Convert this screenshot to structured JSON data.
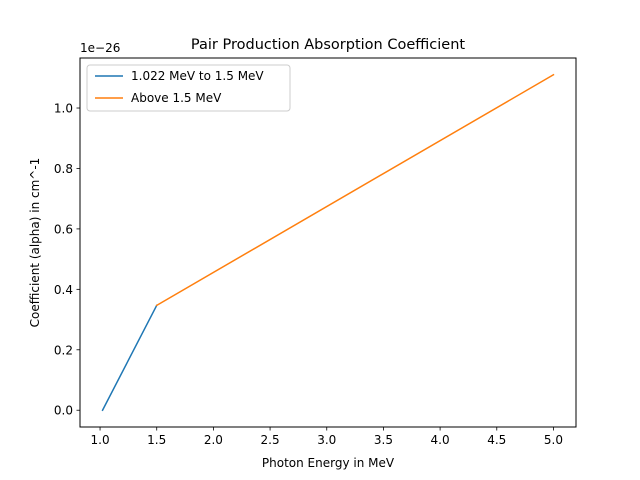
{
  "chart_data": {
    "type": "line",
    "title": "Pair Production Absorption Coefficient",
    "xlabel": "Photon Energy in MeV",
    "ylabel": "Coefficient (alpha) in cm^-1",
    "y_offset_label": "1e−26",
    "xlim": [
      0.8231,
      5.1989
    ],
    "ylim": [
      -0.0555,
      1.1655
    ],
    "x_ticks": [
      1.0,
      1.5,
      2.0,
      2.5,
      3.0,
      3.5,
      4.0,
      4.5,
      5.0
    ],
    "x_tick_labels": [
      "1.0",
      "1.5",
      "2.0",
      "2.5",
      "3.0",
      "3.5",
      "4.0",
      "4.5",
      "5.0"
    ],
    "y_ticks": [
      0.0,
      0.2,
      0.4,
      0.6,
      0.8,
      1.0
    ],
    "y_tick_labels": [
      "0.0",
      "0.2",
      "0.4",
      "0.6",
      "0.8",
      "1.0"
    ],
    "grid": false,
    "legend_position": "top-left",
    "series": [
      {
        "name": "1.022 MeV to 1.5 MeV",
        "color": "#1f77b4",
        "x": [
          1.022,
          1.5
        ],
        "y": [
          0.0,
          0.347
        ]
      },
      {
        "name": "Above 1.5 MeV",
        "color": "#ff7f0e",
        "x": [
          1.5,
          5.0
        ],
        "y": [
          0.347,
          1.11
        ]
      }
    ]
  }
}
